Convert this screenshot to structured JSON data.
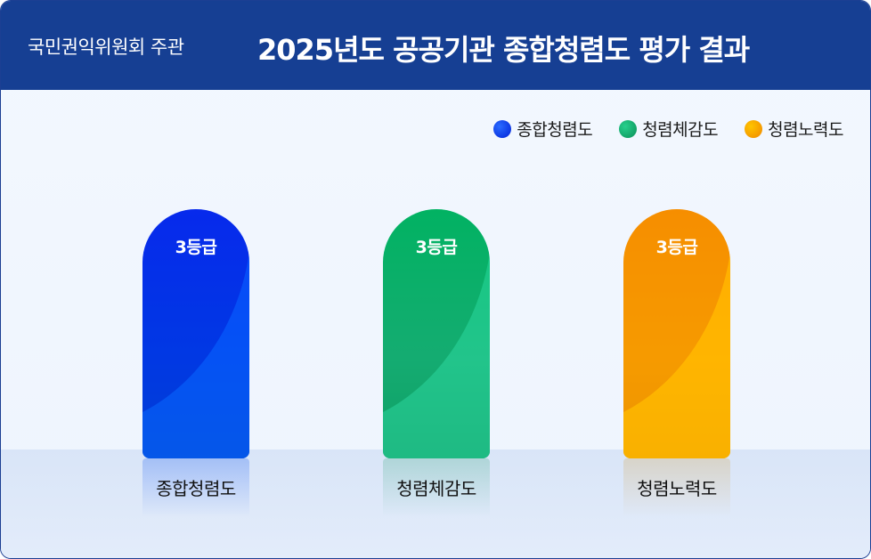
{
  "header": {
    "org": "국민권익위원회 주관",
    "title": "2025년도 공공기관 종합청렴도 평가 결과"
  },
  "chart_data": {
    "type": "bar",
    "categories": [
      "종합청렴도",
      "청렴체감도",
      "청렴노력도"
    ],
    "values": [
      3,
      3,
      3
    ],
    "value_unit": "등급",
    "data_labels": [
      "3등급",
      "3등급",
      "3등급"
    ],
    "legend": [
      "종합청렴도",
      "청렴체감도",
      "청렴노력도"
    ],
    "legend_position": "top-right",
    "colors": [
      "#0a3cf0",
      "#14a86a",
      "#f59a0c"
    ]
  },
  "colors": {
    "header_bg": "#163f93",
    "bar_blue": [
      "#0032ff",
      "#0047e8",
      "#0021c8"
    ],
    "bar_green": [
      "#00c46f",
      "#1bbf86",
      "#068a4e"
    ],
    "bar_orange": [
      "#ff9f00",
      "#ffb300",
      "#e87e00"
    ]
  }
}
